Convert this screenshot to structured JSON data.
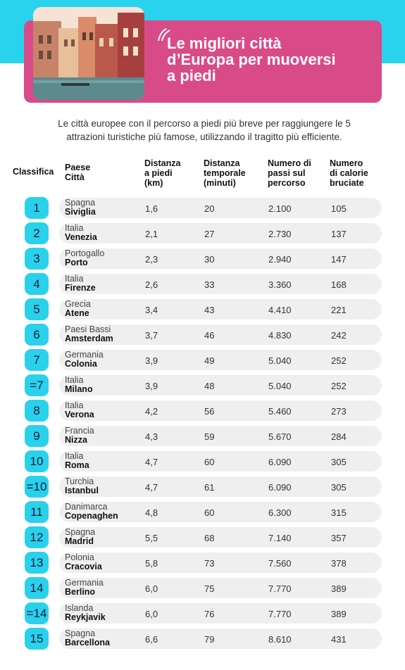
{
  "banner": {
    "title_lines": [
      "Le migliori città",
      "d’Europa per muoversi",
      "a piedi"
    ]
  },
  "subtitle_lines": [
    "Le città europee con il percorso a piedi più breve per raggiungere le 5",
    "attrazioni turistiche più famose, utilizzando il tragitto più efficiente."
  ],
  "colors": {
    "band": "#29d3ee",
    "banner": "#d94b88",
    "badge": "#2ad1eb",
    "row": "#efefef"
  },
  "table": {
    "headers": {
      "rank": "Classifica",
      "place": [
        "Paese",
        "Città"
      ],
      "distance": [
        "Distanza",
        "a piedi",
        "(km)"
      ],
      "time": [
        "Distanza",
        "temporale",
        "(minuti)"
      ],
      "steps": [
        "Numero di",
        "passi sul",
        "percorso"
      ],
      "calories": [
        "Numero",
        "di calorie",
        "bruciate"
      ]
    },
    "rows": [
      {
        "rank": "1",
        "country": "Spagna",
        "city": "Siviglia",
        "km": "1,6",
        "min": "20",
        "steps": "2.100",
        "kcal": "105"
      },
      {
        "rank": "2",
        "country": "Italia",
        "city": "Venezia",
        "km": "2,1",
        "min": "27",
        "steps": "2.730",
        "kcal": "137"
      },
      {
        "rank": "3",
        "country": "Portogallo",
        "city": "Porto",
        "km": "2,3",
        "min": "30",
        "steps": "2.940",
        "kcal": "147"
      },
      {
        "rank": "4",
        "country": "Italia",
        "city": "Firenze",
        "km": "2,6",
        "min": "33",
        "steps": "3.360",
        "kcal": "168"
      },
      {
        "rank": "5",
        "country": "Grecia",
        "city": "Atene",
        "km": "3,4",
        "min": "43",
        "steps": "4.410",
        "kcal": "221"
      },
      {
        "rank": "6",
        "country": "Paesi Bassi",
        "city": "Amsterdam",
        "km": "3,7",
        "min": "46",
        "steps": "4.830",
        "kcal": "242"
      },
      {
        "rank": "7",
        "country": "Germania",
        "city": "Colonia",
        "km": "3,9",
        "min": "49",
        "steps": "5.040",
        "kcal": "252"
      },
      {
        "rank": "=7",
        "country": "Italia",
        "city": "Milano",
        "km": "3,9",
        "min": "48",
        "steps": "5.040",
        "kcal": "252"
      },
      {
        "rank": "8",
        "country": "Italia",
        "city": "Verona",
        "km": "4,2",
        "min": "56",
        "steps": "5.460",
        "kcal": "273"
      },
      {
        "rank": "9",
        "country": "Francia",
        "city": "Nizza",
        "km": "4,3",
        "min": "59",
        "steps": "5.670",
        "kcal": "284"
      },
      {
        "rank": "10",
        "country": "Italia",
        "city": "Roma",
        "km": "4,7",
        "min": "60",
        "steps": "6.090",
        "kcal": "305"
      },
      {
        "rank": "=10",
        "country": "Turchia",
        "city": "Istanbul",
        "km": "4,7",
        "min": "61",
        "steps": "6.090",
        "kcal": "305"
      },
      {
        "rank": "11",
        "country": "Danimarca",
        "city": "Copenaghen",
        "km": "4,8",
        "min": "60",
        "steps": "6.300",
        "kcal": "315"
      },
      {
        "rank": "12",
        "country": "Spagna",
        "city": "Madrid",
        "km": "5,5",
        "min": "68",
        "steps": "7.140",
        "kcal": "357"
      },
      {
        "rank": "13",
        "country": "Polonia",
        "city": "Cracovia",
        "km": "5,8",
        "min": "73",
        "steps": "7.560",
        "kcal": "378"
      },
      {
        "rank": "14",
        "country": "Germania",
        "city": "Berlino",
        "km": "6,0",
        "min": "75",
        "steps": "7.770",
        "kcal": "389"
      },
      {
        "rank": "=14",
        "country": "Islanda",
        "city": "Reykjavik",
        "km": "6,0",
        "min": "76",
        "steps": "7.770",
        "kcal": "389"
      },
      {
        "rank": "15",
        "country": "Spagna",
        "city": "Barcellona",
        "km": "6,6",
        "min": "79",
        "steps": "8.610",
        "kcal": "431"
      }
    ]
  }
}
